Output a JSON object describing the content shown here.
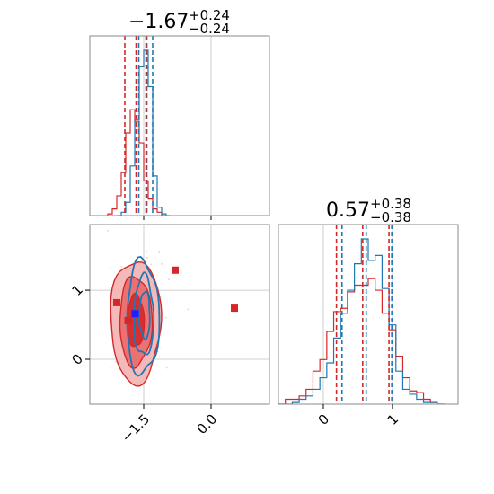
{
  "colors": {
    "red": "#d62728",
    "blue": "#1f77b4",
    "red_fill": "#f3b3b3",
    "marker_blue": "#1f1fff",
    "grid": "#cfcfcf",
    "spine": "#8a8a8a"
  },
  "chart_data": {
    "type": "corner",
    "parameters": [
      {
        "title": {
          "value": "−1.67",
          "plus": "+0.24",
          "minus": "−0.24"
        },
        "range": [
          -2.7,
          1.3
        ],
        "ticks": [
          {
            "value": -1.5,
            "label": "−1.5"
          },
          {
            "value": 0.0,
            "label": "0.0"
          }
        ]
      },
      {
        "title": {
          "value": "0.57",
          "plus": "+0.38",
          "minus": "−0.38"
        },
        "range": [
          -0.65,
          1.95
        ],
        "ticks": [
          {
            "value": 0,
            "label": "0"
          },
          {
            "value": 1,
            "label": "1"
          }
        ]
      }
    ],
    "marginal_1d": [
      {
        "parameter": 0,
        "series": [
          {
            "color": "red",
            "x": [
              -2.25,
              -2.15,
              -2.05,
              -1.95,
              -1.85,
              -1.75,
              -1.65,
              -1.55,
              -1.45,
              -1.35,
              -1.25,
              -1.15,
              -1.05,
              -0.95
            ],
            "y": [
              0.01,
              0.04,
              0.12,
              0.26,
              0.5,
              0.64,
              0.57,
              0.44,
              0.21,
              0.1,
              0.04,
              0.02,
              0.0,
              0.0
            ]
          },
          {
            "color": "blue",
            "x": [
              -2.05,
              -1.95,
              -1.85,
              -1.75,
              -1.65,
              -1.55,
              -1.45,
              -1.35,
              -1.25,
              -1.15,
              -1.05
            ],
            "y": [
              0.0,
              0.02,
              0.08,
              0.3,
              0.58,
              0.9,
              1.0,
              0.78,
              0.24,
              0.05,
              0.01
            ]
          }
        ],
        "quantile_lines": [
          {
            "color": "red",
            "values": [
              -1.92,
              -1.67,
              -1.43
            ]
          },
          {
            "color": "blue",
            "values": [
              -1.61,
              -1.45,
              -1.3
            ]
          }
        ]
      },
      {
        "parameter": 1,
        "series": [
          {
            "color": "red",
            "x": [
              -0.6,
              -0.5,
              -0.4,
              -0.3,
              -0.2,
              -0.1,
              0.0,
              0.1,
              0.2,
              0.3,
              0.4,
              0.5,
              0.6,
              0.7,
              0.8,
              0.9,
              1.0,
              1.1,
              1.2,
              1.3,
              1.4,
              1.5,
              1.6,
              1.7
            ],
            "y": [
              0.0,
              0.03,
              0.03,
              0.05,
              0.09,
              0.2,
              0.27,
              0.44,
              0.56,
              0.58,
              0.68,
              0.72,
              0.72,
              0.76,
              0.69,
              0.55,
              0.45,
              0.29,
              0.16,
              0.08,
              0.07,
              0.03,
              0.01,
              0.0
            ]
          },
          {
            "color": "blue",
            "x": [
              -0.6,
              -0.5,
              -0.4,
              -0.3,
              -0.2,
              -0.1,
              0.0,
              0.1,
              0.2,
              0.3,
              0.4,
              0.5,
              0.6,
              0.7,
              0.8,
              0.9,
              1.0,
              1.1,
              1.2,
              1.3,
              1.4,
              1.5,
              1.6,
              1.7
            ],
            "y": [
              0.0,
              0.0,
              0.01,
              0.03,
              0.05,
              0.09,
              0.16,
              0.25,
              0.4,
              0.55,
              0.69,
              0.85,
              1.0,
              0.87,
              0.9,
              0.7,
              0.48,
              0.2,
              0.09,
              0.06,
              0.03,
              0.01,
              0.01,
              0.0
            ]
          }
        ],
        "quantile_lines": [
          {
            "color": "red",
            "values": [
              0.19,
              0.57,
              0.95
            ]
          },
          {
            "color": "blue",
            "values": [
              0.27,
              0.62,
              0.99
            ]
          }
        ]
      }
    ],
    "contours_2d": [
      {
        "color": "red",
        "filled": true,
        "levels": [
          {
            "cx": -1.68,
            "cy": 0.55,
            "rx": 0.56,
            "ry": 0.89
          },
          {
            "cx": -1.68,
            "cy": 0.55,
            "rx": 0.36,
            "ry": 0.65
          },
          {
            "cx": -1.68,
            "cy": 0.55,
            "rx": 0.19,
            "ry": 0.38
          }
        ]
      },
      {
        "color": "blue",
        "filled": false,
        "levels": [
          {
            "cx": -1.52,
            "cy": 0.6,
            "rx": 0.36,
            "ry": 0.82
          },
          {
            "cx": -1.5,
            "cy": 0.62,
            "rx": 0.22,
            "ry": 0.58
          },
          {
            "cx": -1.48,
            "cy": 0.64,
            "rx": 0.12,
            "ry": 0.34
          }
        ]
      }
    ],
    "markers": [
      {
        "color": "red",
        "x": -2.1,
        "y": 0.82
      },
      {
        "color": "red",
        "x": -1.85,
        "y": 0.56
      },
      {
        "color": "red",
        "x": -0.8,
        "y": 1.29
      },
      {
        "color": "red",
        "x": 0.52,
        "y": 0.74
      },
      {
        "color": "marker_blue",
        "x": -1.69,
        "y": 0.66
      }
    ],
    "grid": true
  }
}
